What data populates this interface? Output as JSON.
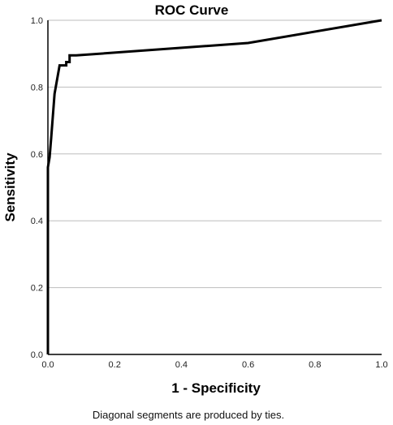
{
  "chart_data": {
    "type": "line",
    "title": "ROC Curve",
    "xlabel": "1 - Specificity",
    "ylabel": "Sensitivity",
    "xlim": [
      0.0,
      1.0
    ],
    "ylim": [
      0.0,
      1.0
    ],
    "x_ticks": [
      "0.0",
      "0.2",
      "0.4",
      "0.6",
      "0.8",
      "1.0"
    ],
    "y_ticks": [
      "0.0",
      "0.2",
      "0.4",
      "0.6",
      "0.8",
      "1.0"
    ],
    "grid": "horizontal",
    "series": [
      {
        "color": "#000000",
        "x": [
          0.0,
          0.0,
          0.0,
          0.005,
          0.01,
          0.02,
          0.035,
          0.055,
          0.055,
          0.065,
          0.065,
          0.085,
          0.6,
          1.0
        ],
        "y": [
          0.0,
          0.45,
          0.56,
          0.59,
          0.65,
          0.78,
          0.865,
          0.865,
          0.875,
          0.875,
          0.895,
          0.895,
          0.932,
          1.0
        ]
      }
    ],
    "footnote": "Diagonal segments are produced by ties."
  }
}
